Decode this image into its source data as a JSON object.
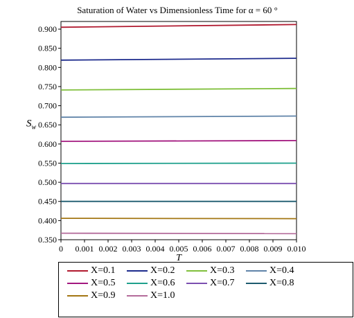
{
  "chart_data": {
    "type": "line",
    "title": "Saturation of Water vs Dimensionless Time for  α = 60 °",
    "xlabel": "T",
    "ylabel_main": "S",
    "ylabel_sub": "w",
    "xlim": [
      0,
      0.01
    ],
    "ylim": [
      0.35,
      0.92
    ],
    "x_ticks": [
      "0",
      "0.001",
      "0.002",
      "0.003",
      "0.004",
      "0.005",
      "0.006",
      "0.007",
      "0.008",
      "0.009",
      "0.010"
    ],
    "y_ticks": [
      "0.350",
      "0.400",
      "0.450",
      "0.500",
      "0.550",
      "0.600",
      "0.650",
      "0.700",
      "0.750",
      "0.800",
      "0.850",
      "0.900"
    ],
    "legend_position": "bottom",
    "series": [
      {
        "name": "X=0.1",
        "color": "#b0182e",
        "x": [
          0,
          0.01
        ],
        "y": [
          0.905,
          0.912
        ]
      },
      {
        "name": "X=0.2",
        "color": "#1c2a8c",
        "x": [
          0,
          0.01
        ],
        "y": [
          0.819,
          0.824
        ]
      },
      {
        "name": "X=0.3",
        "color": "#7fbf3a",
        "x": [
          0,
          0.01
        ],
        "y": [
          0.741,
          0.745
        ]
      },
      {
        "name": "X=0.4",
        "color": "#5f83a8",
        "x": [
          0,
          0.01
        ],
        "y": [
          0.67,
          0.673
        ]
      },
      {
        "name": "X=0.5",
        "color": "#a3187f",
        "x": [
          0,
          0.01
        ],
        "y": [
          0.607,
          0.609
        ]
      },
      {
        "name": "X=0.6",
        "color": "#1ea08c",
        "x": [
          0,
          0.01
        ],
        "y": [
          0.549,
          0.55
        ]
      },
      {
        "name": "X=0.7",
        "color": "#7b4fb0",
        "x": [
          0,
          0.01
        ],
        "y": [
          0.497,
          0.497
        ]
      },
      {
        "name": "X=0.8",
        "color": "#1c5a6e",
        "x": [
          0,
          0.01
        ],
        "y": [
          0.45,
          0.45
        ]
      },
      {
        "name": "X=0.9",
        "color": "#a37612",
        "x": [
          0,
          0.01
        ],
        "y": [
          0.406,
          0.405
        ]
      },
      {
        "name": "X=1.0",
        "color": "#b36a9a",
        "x": [
          0,
          0.01
        ],
        "y": [
          0.367,
          0.366
        ]
      }
    ]
  }
}
